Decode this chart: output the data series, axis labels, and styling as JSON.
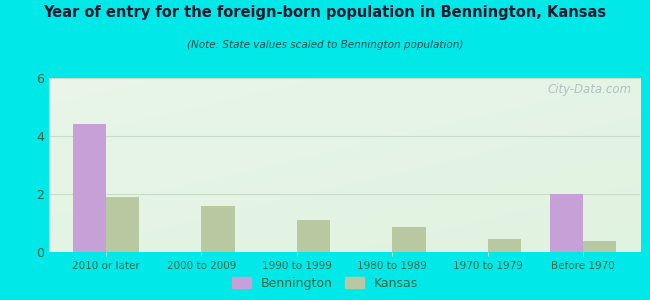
{
  "title": "Year of entry for the foreign-born population in Bennington, Kansas",
  "subtitle": "(Note: State values scaled to Bennington population)",
  "categories": [
    "2010 or later",
    "2000 to 2009",
    "1990 to 1999",
    "1980 to 1989",
    "1970 to 1979",
    "Before 1970"
  ],
  "bennington_values": [
    4.4,
    0,
    0,
    0,
    0,
    2.0
  ],
  "kansas_values": [
    1.9,
    1.6,
    1.1,
    0.85,
    0.45,
    0.38
  ],
  "ylim": [
    0,
    6
  ],
  "yticks": [
    0,
    2,
    4,
    6
  ],
  "bennington_color": "#c8a0d8",
  "kansas_color": "#b8c8a0",
  "bg_outer": "#00e8e8",
  "bar_width": 0.35,
  "legend_labels": [
    "Bennington",
    "Kansas"
  ],
  "watermark": "City-Data.com",
  "title_color": "#1a1a2e",
  "subtitle_color": "#2a4a4a",
  "tick_color": "#336644",
  "grid_color": "#c8ddc8"
}
